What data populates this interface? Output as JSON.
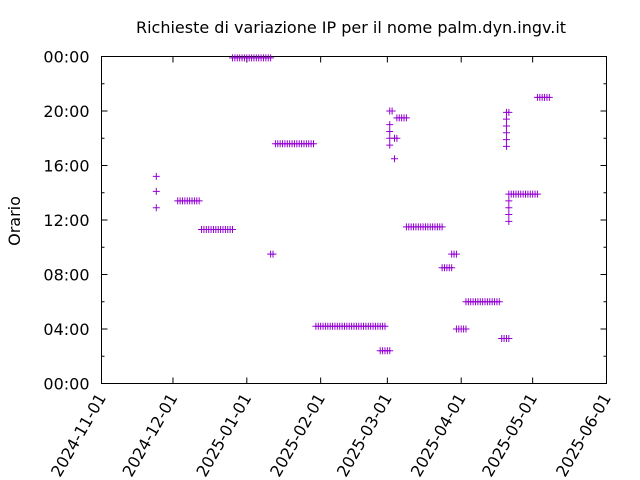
{
  "chart_data": {
    "type": "scatter",
    "title": "Richieste di variazione IP per il nome palm.dyn.ingv.it",
    "xlabel": "",
    "ylabel": "Orario",
    "x_ticks": [
      "2024-11-01",
      "2024-12-01",
      "2025-01-01",
      "2025-02-01",
      "2025-03-01",
      "2025-04-01",
      "2025-05-01",
      "2025-06-01"
    ],
    "y_ticks": [
      "00:00",
      "04:00",
      "08:00",
      "12:00",
      "16:00",
      "20:00",
      "00:00"
    ],
    "xlim": [
      "2024-11-01",
      "2025-06-01"
    ],
    "ylim_hours": [
      0,
      24
    ],
    "marker": "+",
    "color": "#9400d3",
    "grid": false,
    "series": [
      {
        "points": [
          {
            "x": "2024-11-24",
            "y": 12.9
          },
          {
            "x": "2024-11-24",
            "y": 14.1
          },
          {
            "x": "2024-11-24",
            "y": 15.2
          },
          {
            "x": "2024-12-03",
            "y": 13.4
          },
          {
            "x": "2024-12-04",
            "y": 13.4
          },
          {
            "x": "2024-12-05",
            "y": 13.4
          },
          {
            "x": "2024-12-06",
            "y": 13.4
          },
          {
            "x": "2024-12-07",
            "y": 13.4
          },
          {
            "x": "2024-12-08",
            "y": 13.4
          },
          {
            "x": "2024-12-09",
            "y": 13.4
          },
          {
            "x": "2024-12-10",
            "y": 13.4
          },
          {
            "x": "2024-12-11",
            "y": 13.4
          },
          {
            "x": "2024-12-12",
            "y": 13.4
          },
          {
            "x": "2024-12-13",
            "y": 11.3
          },
          {
            "x": "2024-12-14",
            "y": 11.3
          },
          {
            "x": "2024-12-15",
            "y": 11.3
          },
          {
            "x": "2024-12-16",
            "y": 11.3
          },
          {
            "x": "2024-12-17",
            "y": 11.3
          },
          {
            "x": "2024-12-18",
            "y": 11.3
          },
          {
            "x": "2024-12-19",
            "y": 11.3
          },
          {
            "x": "2024-12-20",
            "y": 11.3
          },
          {
            "x": "2024-12-21",
            "y": 11.3
          },
          {
            "x": "2024-12-22",
            "y": 11.3
          },
          {
            "x": "2024-12-23",
            "y": 11.3
          },
          {
            "x": "2024-12-24",
            "y": 11.3
          },
          {
            "x": "2024-12-25",
            "y": 11.3
          },
          {
            "x": "2024-12-26",
            "y": 11.3
          },
          {
            "x": "2024-12-26",
            "y": 23.9
          },
          {
            "x": "2024-12-27",
            "y": 23.9
          },
          {
            "x": "2024-12-28",
            "y": 23.9
          },
          {
            "x": "2024-12-29",
            "y": 23.9
          },
          {
            "x": "2024-12-30",
            "y": 23.9
          },
          {
            "x": "2024-12-31",
            "y": 23.9
          },
          {
            "x": "2025-01-01",
            "y": 23.9
          },
          {
            "x": "2025-01-02",
            "y": 23.9
          },
          {
            "x": "2025-01-03",
            "y": 23.9
          },
          {
            "x": "2025-01-04",
            "y": 23.9
          },
          {
            "x": "2025-01-05",
            "y": 23.9
          },
          {
            "x": "2025-01-06",
            "y": 23.9
          },
          {
            "x": "2025-01-07",
            "y": 23.9
          },
          {
            "x": "2025-01-08",
            "y": 23.9
          },
          {
            "x": "2025-01-09",
            "y": 23.9
          },
          {
            "x": "2025-01-10",
            "y": 23.9
          },
          {
            "x": "2025-01-11",
            "y": 23.9
          },
          {
            "x": "2025-01-11",
            "y": 9.5
          },
          {
            "x": "2025-01-12",
            "y": 9.5
          },
          {
            "x": "2025-01-13",
            "y": 17.6
          },
          {
            "x": "2025-01-14",
            "y": 17.6
          },
          {
            "x": "2025-01-15",
            "y": 17.6
          },
          {
            "x": "2025-01-16",
            "y": 17.6
          },
          {
            "x": "2025-01-17",
            "y": 17.6
          },
          {
            "x": "2025-01-18",
            "y": 17.6
          },
          {
            "x": "2025-01-19",
            "y": 17.6
          },
          {
            "x": "2025-01-20",
            "y": 17.6
          },
          {
            "x": "2025-01-21",
            "y": 17.6
          },
          {
            "x": "2025-01-22",
            "y": 17.6
          },
          {
            "x": "2025-01-23",
            "y": 17.6
          },
          {
            "x": "2025-01-24",
            "y": 17.6
          },
          {
            "x": "2025-01-25",
            "y": 17.6
          },
          {
            "x": "2025-01-26",
            "y": 17.6
          },
          {
            "x": "2025-01-27",
            "y": 17.6
          },
          {
            "x": "2025-01-28",
            "y": 17.6
          },
          {
            "x": "2025-01-29",
            "y": 17.6
          },
          {
            "x": "2025-01-30",
            "y": 4.2
          },
          {
            "x": "2025-01-31",
            "y": 4.2
          },
          {
            "x": "2025-02-01",
            "y": 4.2
          },
          {
            "x": "2025-02-02",
            "y": 4.2
          },
          {
            "x": "2025-02-03",
            "y": 4.2
          },
          {
            "x": "2025-02-04",
            "y": 4.2
          },
          {
            "x": "2025-02-05",
            "y": 4.2
          },
          {
            "x": "2025-02-06",
            "y": 4.2
          },
          {
            "x": "2025-02-07",
            "y": 4.2
          },
          {
            "x": "2025-02-08",
            "y": 4.2
          },
          {
            "x": "2025-02-09",
            "y": 4.2
          },
          {
            "x": "2025-02-10",
            "y": 4.2
          },
          {
            "x": "2025-02-11",
            "y": 4.2
          },
          {
            "x": "2025-02-12",
            "y": 4.2
          },
          {
            "x": "2025-02-13",
            "y": 4.2
          },
          {
            "x": "2025-02-14",
            "y": 4.2
          },
          {
            "x": "2025-02-15",
            "y": 4.2
          },
          {
            "x": "2025-02-16",
            "y": 4.2
          },
          {
            "x": "2025-02-17",
            "y": 4.2
          },
          {
            "x": "2025-02-18",
            "y": 4.2
          },
          {
            "x": "2025-02-19",
            "y": 4.2
          },
          {
            "x": "2025-02-20",
            "y": 4.2
          },
          {
            "x": "2025-02-21",
            "y": 4.2
          },
          {
            "x": "2025-02-22",
            "y": 4.2
          },
          {
            "x": "2025-02-23",
            "y": 4.2
          },
          {
            "x": "2025-02-24",
            "y": 4.2
          },
          {
            "x": "2025-02-25",
            "y": 4.2
          },
          {
            "x": "2025-02-26",
            "y": 4.2
          },
          {
            "x": "2025-02-27",
            "y": 4.2
          },
          {
            "x": "2025-02-28",
            "y": 4.2
          },
          {
            "x": "2025-02-26",
            "y": 2.4
          },
          {
            "x": "2025-02-27",
            "y": 2.4
          },
          {
            "x": "2025-02-28",
            "y": 2.4
          },
          {
            "x": "2025-03-01",
            "y": 2.4
          },
          {
            "x": "2025-03-02",
            "y": 2.4
          },
          {
            "x": "2025-03-02",
            "y": 17.5
          },
          {
            "x": "2025-03-02",
            "y": 18.0
          },
          {
            "x": "2025-03-02",
            "y": 18.5
          },
          {
            "x": "2025-03-02",
            "y": 19.0
          },
          {
            "x": "2025-03-02",
            "y": 20.0
          },
          {
            "x": "2025-03-03",
            "y": 20.0
          },
          {
            "x": "2025-03-04",
            "y": 16.5
          },
          {
            "x": "2025-03-04",
            "y": 18.0
          },
          {
            "x": "2025-03-05",
            "y": 18.0
          },
          {
            "x": "2025-03-05",
            "y": 19.5
          },
          {
            "x": "2025-03-06",
            "y": 19.5
          },
          {
            "x": "2025-03-07",
            "y": 19.5
          },
          {
            "x": "2025-03-08",
            "y": 19.5
          },
          {
            "x": "2025-03-09",
            "y": 19.5
          },
          {
            "x": "2025-03-09",
            "y": 11.5
          },
          {
            "x": "2025-03-10",
            "y": 11.5
          },
          {
            "x": "2025-03-11",
            "y": 11.5
          },
          {
            "x": "2025-03-12",
            "y": 11.5
          },
          {
            "x": "2025-03-13",
            "y": 11.5
          },
          {
            "x": "2025-03-14",
            "y": 11.5
          },
          {
            "x": "2025-03-15",
            "y": 11.5
          },
          {
            "x": "2025-03-16",
            "y": 11.5
          },
          {
            "x": "2025-03-17",
            "y": 11.5
          },
          {
            "x": "2025-03-18",
            "y": 11.5
          },
          {
            "x": "2025-03-19",
            "y": 11.5
          },
          {
            "x": "2025-03-20",
            "y": 11.5
          },
          {
            "x": "2025-03-21",
            "y": 11.5
          },
          {
            "x": "2025-03-22",
            "y": 11.5
          },
          {
            "x": "2025-03-23",
            "y": 11.5
          },
          {
            "x": "2025-03-24",
            "y": 11.5
          },
          {
            "x": "2025-03-24",
            "y": 8.5
          },
          {
            "x": "2025-03-25",
            "y": 8.5
          },
          {
            "x": "2025-03-26",
            "y": 8.5
          },
          {
            "x": "2025-03-27",
            "y": 8.5
          },
          {
            "x": "2025-03-28",
            "y": 8.5
          },
          {
            "x": "2025-03-28",
            "y": 9.5
          },
          {
            "x": "2025-03-29",
            "y": 9.5
          },
          {
            "x": "2025-03-30",
            "y": 9.5
          },
          {
            "x": "2025-03-30",
            "y": 4.0
          },
          {
            "x": "2025-03-31",
            "y": 4.0
          },
          {
            "x": "2025-04-01",
            "y": 4.0
          },
          {
            "x": "2025-04-02",
            "y": 4.0
          },
          {
            "x": "2025-04-03",
            "y": 4.0
          },
          {
            "x": "2025-04-03",
            "y": 6.0
          },
          {
            "x": "2025-04-04",
            "y": 6.0
          },
          {
            "x": "2025-04-05",
            "y": 6.0
          },
          {
            "x": "2025-04-06",
            "y": 6.0
          },
          {
            "x": "2025-04-07",
            "y": 6.0
          },
          {
            "x": "2025-04-08",
            "y": 6.0
          },
          {
            "x": "2025-04-09",
            "y": 6.0
          },
          {
            "x": "2025-04-10",
            "y": 6.0
          },
          {
            "x": "2025-04-11",
            "y": 6.0
          },
          {
            "x": "2025-04-12",
            "y": 6.0
          },
          {
            "x": "2025-04-13",
            "y": 6.0
          },
          {
            "x": "2025-04-14",
            "y": 6.0
          },
          {
            "x": "2025-04-15",
            "y": 6.0
          },
          {
            "x": "2025-04-16",
            "y": 6.0
          },
          {
            "x": "2025-04-17",
            "y": 6.0
          },
          {
            "x": "2025-04-18",
            "y": 3.3
          },
          {
            "x": "2025-04-19",
            "y": 3.3
          },
          {
            "x": "2025-04-20",
            "y": 3.3
          },
          {
            "x": "2025-04-21",
            "y": 3.3
          },
          {
            "x": "2025-04-20",
            "y": 17.4
          },
          {
            "x": "2025-04-20",
            "y": 17.9
          },
          {
            "x": "2025-04-20",
            "y": 18.4
          },
          {
            "x": "2025-04-20",
            "y": 18.9
          },
          {
            "x": "2025-04-20",
            "y": 19.4
          },
          {
            "x": "2025-04-20",
            "y": 19.9
          },
          {
            "x": "2025-04-21",
            "y": 19.9
          },
          {
            "x": "2025-04-21",
            "y": 11.9
          },
          {
            "x": "2025-04-21",
            "y": 12.4
          },
          {
            "x": "2025-04-21",
            "y": 12.9
          },
          {
            "x": "2025-04-21",
            "y": 13.4
          },
          {
            "x": "2025-04-21",
            "y": 13.9
          },
          {
            "x": "2025-04-22",
            "y": 13.9
          },
          {
            "x": "2025-04-23",
            "y": 13.9
          },
          {
            "x": "2025-04-24",
            "y": 13.9
          },
          {
            "x": "2025-04-25",
            "y": 13.9
          },
          {
            "x": "2025-04-26",
            "y": 13.9
          },
          {
            "x": "2025-04-27",
            "y": 13.9
          },
          {
            "x": "2025-04-28",
            "y": 13.9
          },
          {
            "x": "2025-04-29",
            "y": 13.9
          },
          {
            "x": "2025-04-30",
            "y": 13.9
          },
          {
            "x": "2025-05-01",
            "y": 13.9
          },
          {
            "x": "2025-05-02",
            "y": 13.9
          },
          {
            "x": "2025-05-03",
            "y": 13.9
          },
          {
            "x": "2025-05-03",
            "y": 21.0
          },
          {
            "x": "2025-05-04",
            "y": 21.0
          },
          {
            "x": "2025-05-05",
            "y": 21.0
          },
          {
            "x": "2025-05-06",
            "y": 21.0
          },
          {
            "x": "2025-05-07",
            "y": 21.0
          },
          {
            "x": "2025-05-08",
            "y": 21.0
          }
        ]
      }
    ]
  }
}
